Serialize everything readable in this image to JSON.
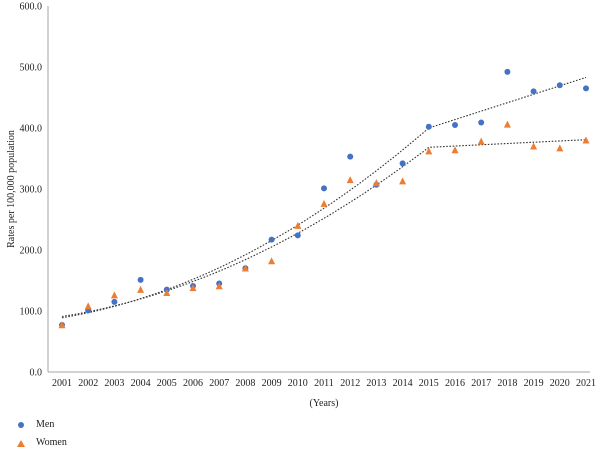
{
  "colors": {
    "men": "#4472C4",
    "women": "#ED7D31",
    "trend": "#333333",
    "axis": "#999999"
  },
  "chart_data": {
    "type": "scatter",
    "title": "",
    "xlabel": "(Years)",
    "ylabel": "Rates per 100,000 population",
    "x": [
      2001,
      2002,
      2003,
      2004,
      2005,
      2006,
      2007,
      2008,
      2009,
      2010,
      2011,
      2012,
      2013,
      2014,
      2015,
      2016,
      2017,
      2018,
      2019,
      2020,
      2021
    ],
    "xtick_labels": [
      "2001",
      "2002",
      "2003",
      "2004",
      "2005",
      "2006",
      "2007",
      "2008",
      "2009",
      "2010",
      "2011",
      "2012",
      "2013",
      "2014",
      "2015",
      "2016",
      "2017",
      "2018",
      "2019",
      "2020",
      "2021"
    ],
    "ylim": [
      0,
      600
    ],
    "ytick_labels": [
      "0.0",
      "100.0",
      "200.0",
      "300.0",
      "400.0",
      "500.0",
      "600.0"
    ],
    "ytick_values": [
      0,
      100,
      200,
      300,
      400,
      500,
      600
    ],
    "grid": false,
    "legend_position": "bottom-left",
    "series": [
      {
        "name": "Men",
        "marker": "circle",
        "color": "#4472C4",
        "values": [
          77,
          101,
          115,
          151,
          135,
          141,
          145,
          170,
          217,
          224,
          301,
          353,
          307,
          342,
          402,
          405,
          409,
          492,
          460,
          470,
          465
        ],
        "trend": {
          "segments": [
            {
              "x": [
                2001,
                2015
              ],
              "poly2": true
            },
            {
              "x": [
                2015,
                2021
              ],
              "linear": true
            }
          ]
        }
      },
      {
        "name": "Women",
        "marker": "triangle",
        "color": "#ED7D31",
        "values": [
          77,
          108,
          126,
          135,
          130,
          138,
          141,
          170,
          182,
          240,
          276,
          315,
          310,
          313,
          362,
          364,
          378,
          406,
          370,
          367,
          380
        ],
        "trend": {
          "segments": [
            {
              "x": [
                2001,
                2015
              ],
              "poly2": true
            },
            {
              "x": [
                2015,
                2021
              ],
              "linear": true
            }
          ]
        }
      }
    ]
  },
  "legend": {
    "items": [
      {
        "label": "Men"
      },
      {
        "label": "Women"
      }
    ]
  }
}
